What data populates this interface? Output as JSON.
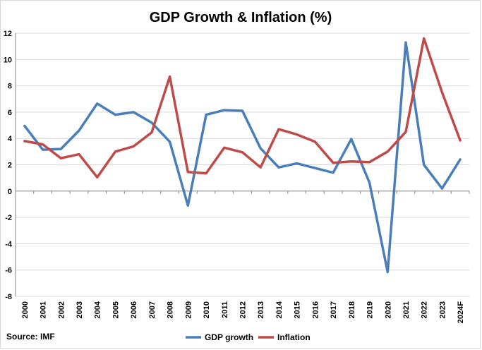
{
  "chart_data": {
    "type": "line",
    "title": "GDP Growth & Inflation (%)",
    "source": "Source: IMF",
    "categories": [
      "2000",
      "2001",
      "2002",
      "2003",
      "2004",
      "2005",
      "2006",
      "2007",
      "2008",
      "2009",
      "2010",
      "2011",
      "2012",
      "2013",
      "2014",
      "2015",
      "2016",
      "2017",
      "2018",
      "2019",
      "2020",
      "2021",
      "2022",
      "2023",
      "2024F"
    ],
    "ylim": [
      -8,
      12
    ],
    "yticks": [
      -8,
      -6,
      -4,
      -2,
      0,
      2,
      4,
      6,
      8,
      10,
      12
    ],
    "grid": true,
    "legend_position": "bottom",
    "series": [
      {
        "name": "GDP growth",
        "color": "#4a7ebb",
        "values": [
          4.95,
          3.15,
          3.2,
          4.6,
          6.65,
          5.8,
          6.0,
          5.2,
          3.75,
          -1.1,
          5.8,
          6.15,
          6.1,
          3.25,
          1.8,
          2.1,
          1.75,
          1.4,
          3.95,
          0.65,
          -6.15,
          11.3,
          2.0,
          0.2,
          2.4
        ]
      },
      {
        "name": "Inflation",
        "color": "#be4b48",
        "values": [
          3.8,
          3.55,
          2.5,
          2.8,
          1.05,
          3.0,
          3.4,
          4.45,
          8.7,
          1.45,
          1.35,
          3.3,
          2.95,
          1.8,
          4.7,
          4.3,
          3.75,
          2.15,
          2.25,
          2.2,
          3.0,
          4.5,
          11.6,
          7.5,
          3.85
        ]
      }
    ]
  }
}
